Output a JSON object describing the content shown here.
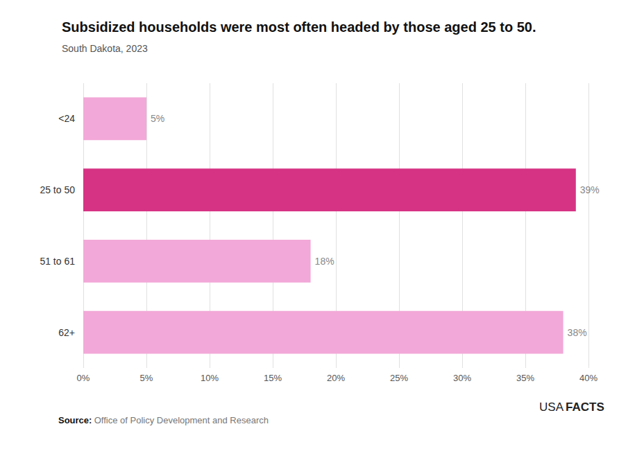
{
  "chart_data": {
    "type": "bar",
    "orientation": "horizontal",
    "title": "Subsidized households were most often headed by those aged 25 to 50.",
    "subtitle": "South Dakota, 2023",
    "categories": [
      "62+",
      "51 to 61",
      "25 to 50",
      "<24"
    ],
    "values": [
      38,
      18,
      39,
      5
    ],
    "value_labels": [
      "38%",
      "18%",
      "39%",
      "5%"
    ],
    "data_labels": true,
    "colors": [
      "#f2a8d8",
      "#f2a8d8",
      "#d63384",
      "#f2a8d8"
    ],
    "xlim": [
      0,
      40
    ],
    "xticks": [
      {
        "value": 0,
        "label": "0%"
      },
      {
        "value": 5,
        "label": "5%"
      },
      {
        "value": 10,
        "label": "10%"
      },
      {
        "value": 15,
        "label": "15%"
      },
      {
        "value": 20,
        "label": "20%"
      },
      {
        "value": 25,
        "label": "25%"
      },
      {
        "value": 30,
        "label": "30%"
      },
      {
        "value": 35,
        "label": "35%"
      },
      {
        "value": 40,
        "label": "40%"
      }
    ],
    "grid": true,
    "annotations": [
      "Source:",
      "Office of Policy Development and Research",
      "USA",
      "FACTS"
    ]
  }
}
